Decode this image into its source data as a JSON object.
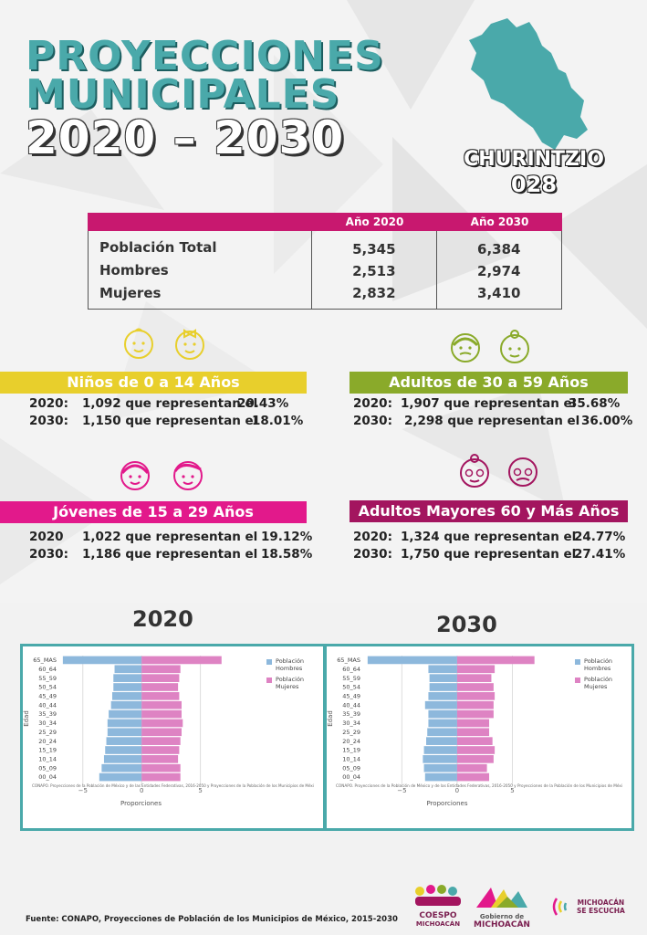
{
  "header": {
    "title_line1": "PROYECCIONES",
    "title_line2": "MUNICIPALES",
    "title_line3": "2020 – 2030",
    "municipality": "CHURINTZIO",
    "code": "028"
  },
  "population_table": {
    "col_2020": "Año 2020",
    "col_2030": "Año 2030",
    "rows": [
      {
        "label": "Población Total",
        "v2020": "5,345",
        "v2030": "6,384"
      },
      {
        "label": "Hombres",
        "v2020": "2,513",
        "v2030": "2,974"
      },
      {
        "label": "Mujeres",
        "v2020": "2,832",
        "v2030": "3,410"
      }
    ]
  },
  "groups": {
    "ninos": {
      "title": "Niños de 0 a 14 Años",
      "l1_year": "2020:",
      "l1_text": "1,092 que representan el",
      "l1_pct": "20.43%",
      "l2_year": "2030:",
      "l2_text": "1,150 que representan el",
      "l2_pct": "18.01%",
      "color": "#e8cf2c"
    },
    "adultos": {
      "title": "Adultos de 30 a 59 Años",
      "l1_year": "2020:",
      "l1_text": "1,907 que representan el",
      "l1_pct": "35.68%",
      "l2_year": "2030:",
      "l2_text": "2,298 que representan el",
      "l2_pct": "36.00%",
      "color": "#8aaa2a"
    },
    "jovenes": {
      "title": "Jóvenes de 15 a 29 Años",
      "l1_year": "2020",
      "l1_text": "1,022 que representan el",
      "l1_pct": "19.12%",
      "l2_year": "2030:",
      "l2_text": "1,186 que representan el",
      "l2_pct": "18.58%",
      "color": "#e2198b"
    },
    "mayores": {
      "title": "Adultos Mayores  60 y Más Años",
      "l1_year": "2020:",
      "l1_text": "1,324 que representan el",
      "l1_pct": "24.77%",
      "l2_year": "2030:",
      "l2_text": "1,750 que representan el",
      "l2_pct": "27.41%",
      "color": "#a3155f"
    }
  },
  "charts": {
    "year_2020": "2020",
    "year_2030": "2030"
  },
  "chart_data": [
    {
      "type": "bar",
      "orientation": "horizontal",
      "categories": [
        "65_MAS",
        "60_64",
        "55_59",
        "50_54",
        "45_49",
        "40_44",
        "35_39",
        "30_34",
        "25_29",
        "20_24",
        "15_19",
        "10_14",
        "05_09",
        "00_04"
      ],
      "series": [
        {
          "name": "Población Hombres",
          "values": [
            -6.7,
            -2.3,
            -2.4,
            -2.4,
            -2.5,
            -2.6,
            -2.8,
            -2.9,
            -2.9,
            -3.0,
            -3.1,
            -3.2,
            -3.4,
            -3.6
          ]
        },
        {
          "name": "Población Mujeres",
          "values": [
            6.8,
            3.3,
            3.2,
            3.1,
            3.2,
            3.4,
            3.4,
            3.5,
            3.4,
            3.3,
            3.2,
            3.1,
            3.3,
            3.3
          ]
        }
      ],
      "ylabel": "Edad",
      "xlabel": "Proporciones",
      "xticks": [
        "−5",
        "0",
        "5"
      ],
      "xlim": [
        -7,
        10
      ],
      "legend": "top-right",
      "note": "CONAPO. Proyecciones de la Población de México y de las Entidades Federativas, 2016-2050 y Proyecciones de la Población de los Municipios de Méxi"
    },
    {
      "type": "bar",
      "orientation": "horizontal",
      "categories": [
        "65_MAS",
        "60_64",
        "55_59",
        "50_54",
        "45_49",
        "40_44",
        "35_39",
        "30_34",
        "25_29",
        "20_24",
        "15_19",
        "10_14",
        "05_09",
        "00_04"
      ],
      "series": [
        {
          "name": "Población Hombres",
          "values": [
            -8.1,
            -2.6,
            -2.5,
            -2.5,
            -2.6,
            -2.9,
            -2.6,
            -2.6,
            -2.7,
            -2.8,
            -3.0,
            -3.1,
            -3.0,
            -2.9
          ]
        },
        {
          "name": "Población Mujeres",
          "values": [
            7.0,
            3.4,
            3.1,
            3.3,
            3.4,
            3.3,
            3.3,
            2.9,
            2.9,
            3.2,
            3.4,
            3.3,
            2.7,
            2.9
          ]
        }
      ],
      "ylabel": "Edad",
      "xlabel": "Proporciones",
      "xticks": [
        "−5",
        "0",
        "5"
      ],
      "xlim": [
        -8.5,
        10
      ],
      "legend": "top-right",
      "note": "CONAPO. Proyecciones de la Población de México y de las Entidades Federativas, 2016-2050 y Proyecciones de la Población de los Municipios de Méxi"
    }
  ],
  "footer": {
    "source": "Fuente: CONAPO, Proyecciones de Población de los Municipios de México, 2015-2030",
    "logo1_a": "COESPO",
    "logo1_b": "MICHOACÁN",
    "logo2_a": "Gobierno de",
    "logo2_b": "MICHOACÁN",
    "logo3_a": "MICHOACÁN",
    "logo3_b": "SE ESCUCHA"
  }
}
